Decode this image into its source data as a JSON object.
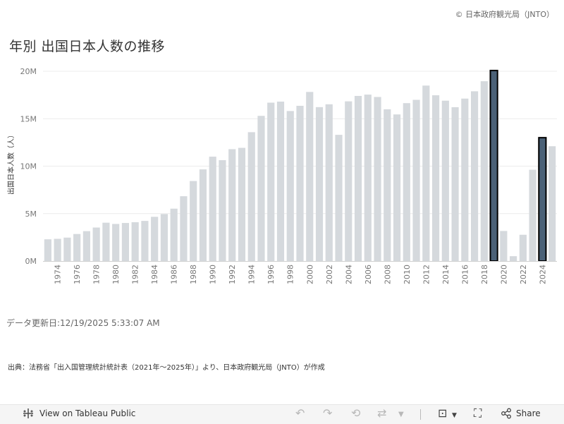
{
  "header": {
    "copyright": "© 日本政府観光局（JNTO）",
    "title": "年別 出国日本人数の推移"
  },
  "chart_data": {
    "type": "bar",
    "title": "年別 出国日本人数の推移",
    "ylabel": "出国日本人数（人）",
    "xlabel": "",
    "ylim": [
      0,
      20000000
    ],
    "y_ticks": [
      "0M",
      "5M",
      "10M",
      "15M",
      "20M"
    ],
    "grid": true,
    "highlight_color": "#4b6177",
    "bar_color": "#d5d9dd",
    "categories": [
      "1973",
      "1974",
      "1975",
      "1976",
      "1977",
      "1978",
      "1979",
      "1980",
      "1981",
      "1982",
      "1983",
      "1984",
      "1985",
      "1986",
      "1987",
      "1988",
      "1989",
      "1990",
      "1991",
      "1992",
      "1993",
      "1994",
      "1995",
      "1996",
      "1997",
      "1998",
      "1999",
      "2000",
      "2001",
      "2002",
      "2003",
      "2004",
      "2005",
      "2006",
      "2007",
      "2008",
      "2009",
      "2010",
      "2011",
      "2012",
      "2013",
      "2014",
      "2015",
      "2016",
      "2017",
      "2018",
      "2019",
      "2020",
      "2021",
      "2022",
      "2023",
      "2024",
      "2025"
    ],
    "x_tick_labels": [
      "",
      "1974",
      "",
      "1976",
      "",
      "1978",
      "",
      "1980",
      "",
      "1982",
      "",
      "1984",
      "",
      "1986",
      "",
      "1988",
      "",
      "1990",
      "",
      "1992",
      "",
      "1994",
      "",
      "1996",
      "",
      "1998",
      "",
      "2000",
      "",
      "2002",
      "",
      "2004",
      "",
      "2006",
      "",
      "2008",
      "",
      "2010",
      "",
      "2012",
      "",
      "2014",
      "",
      "2016",
      "",
      "2018",
      "",
      "2020",
      "",
      "2022",
      "",
      "2024",
      ""
    ],
    "values": [
      2290000,
      2340000,
      2470000,
      2850000,
      3150000,
      3530000,
      4040000,
      3910000,
      4010000,
      4090000,
      4230000,
      4660000,
      4950000,
      5520000,
      6830000,
      8430000,
      9660000,
      11000000,
      10630000,
      11790000,
      11930000,
      13580000,
      15300000,
      16690000,
      16800000,
      15810000,
      16360000,
      17820000,
      16220000,
      16520000,
      13300000,
      16830000,
      17400000,
      17540000,
      17290000,
      15990000,
      15450000,
      16640000,
      16990000,
      18490000,
      17470000,
      16900000,
      16210000,
      17120000,
      17890000,
      18950000,
      20080000,
      3170000,
      510000,
      2770000,
      9620000,
      13000000,
      12100000
    ],
    "highlighted": [
      "2019",
      "2024"
    ]
  },
  "footer": {
    "update_text": "データ更新日:12/19/2025 5:33:07 AM",
    "source_text": "出典：法務省「出入国管理統計統計表（2021年～2025年）」より、日本政府観光局（JNTO）が作成"
  },
  "toolbar": {
    "view_label": "View on Tableau Public",
    "share_label": "Share",
    "icons": [
      "tableau-logo-icon",
      "undo-icon",
      "redo-icon",
      "revert-icon",
      "refresh-icon",
      "download-icon",
      "fullscreen-icon",
      "share-icon"
    ]
  }
}
